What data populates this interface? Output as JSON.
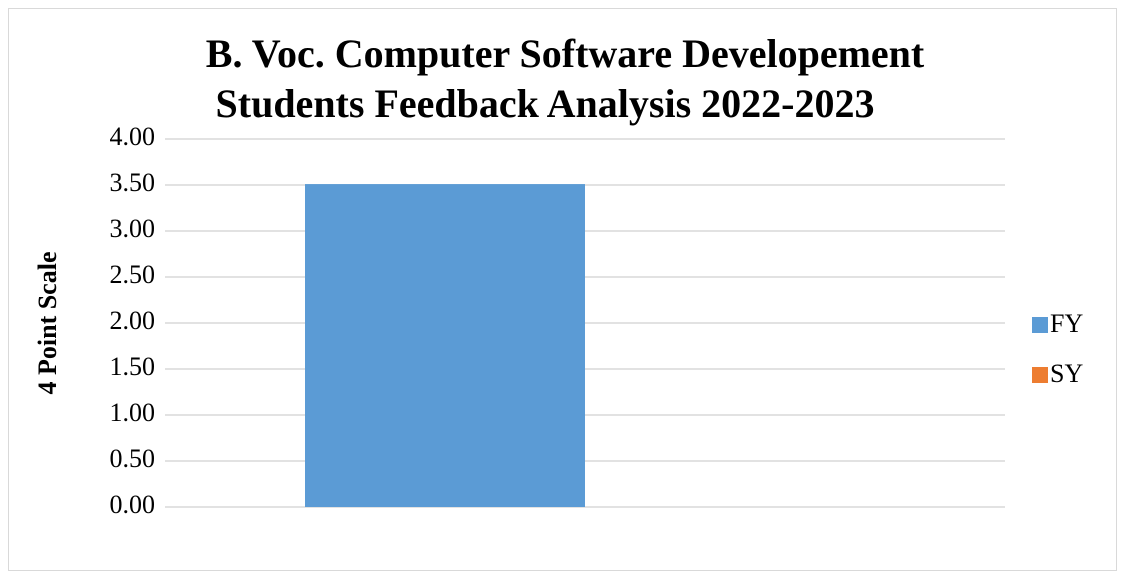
{
  "chart_data": {
    "type": "bar",
    "title": [
      "B. Voc. Computer Software Developement",
      "Students Feedback Analysis 2022-2023"
    ],
    "y_label": "4 Point Scale",
    "categories": [
      null
    ],
    "series": [
      {
        "name": "FY",
        "color": "#5b9bd5",
        "values": [
          3.51
        ]
      },
      {
        "name": "SY",
        "color": "#ed7d31",
        "values": [
          0
        ]
      }
    ],
    "ylim": [
      0,
      4
    ],
    "yticks": [
      {
        "value": 0,
        "label": "0.00"
      },
      {
        "value": 0.5,
        "label": "0.50"
      },
      {
        "value": 1,
        "label": "1.00"
      },
      {
        "value": 1.5,
        "label": "1.50"
      },
      {
        "value": 2,
        "label": "2.00"
      },
      {
        "value": 2.5,
        "label": "2.50"
      },
      {
        "value": 3,
        "label": "3.00"
      },
      {
        "value": 3.5,
        "label": "3.50"
      },
      {
        "value": 4,
        "label": "4.00"
      }
    ],
    "grid": true,
    "legend": "right"
  }
}
